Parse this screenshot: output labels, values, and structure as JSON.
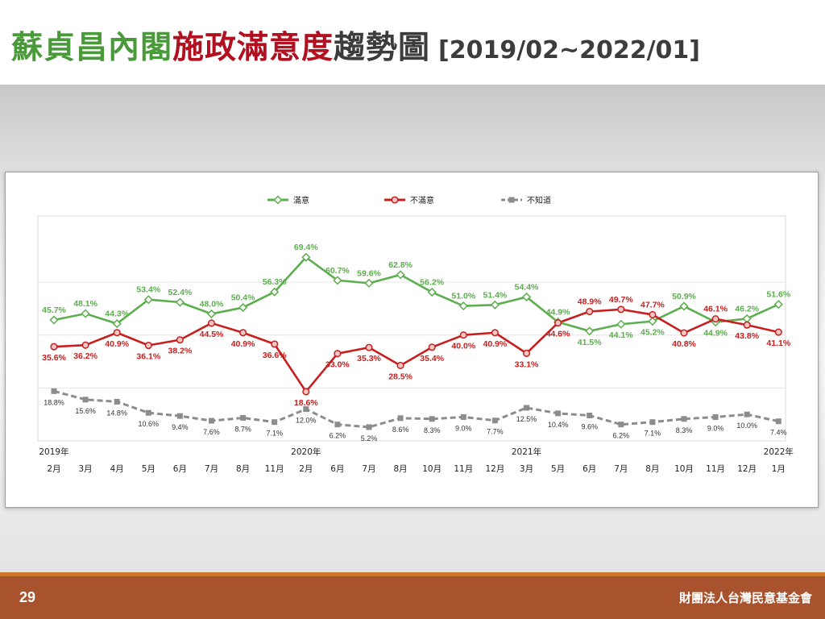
{
  "slide": {
    "title_parts": {
      "green": "蘇貞昌內閣",
      "red": "施政滿意度",
      "gray": "趨勢圖",
      "range": "[2019/02~2022/01]"
    },
    "page_number": "29",
    "organization": "財團法人台灣民意基金會",
    "colors": {
      "title_green": "#4a9a3c",
      "title_red": "#b01020",
      "footer": "#a8532d",
      "footer_line": "#c9782c"
    }
  },
  "chart_data": {
    "type": "line",
    "title": "",
    "xlabel": "",
    "ylabel": "",
    "ylim": [
      0,
      85
    ],
    "grid": true,
    "legend_position": "top",
    "categories": [
      "2月",
      "3月",
      "4月",
      "5月",
      "6月",
      "7月",
      "8月",
      "11月",
      "2月",
      "6月",
      "7月",
      "8月",
      "10月",
      "11月",
      "12月",
      "3月",
      "5月",
      "6月",
      "7月",
      "8月",
      "10月",
      "11月",
      "12月",
      "1月"
    ],
    "year_labels": [
      {
        "index": 0,
        "label": "2019年"
      },
      {
        "index": 8,
        "label": "2020年"
      },
      {
        "index": 15,
        "label": "2021年"
      },
      {
        "index": 23,
        "label": "2022年"
      }
    ],
    "series": [
      {
        "name": "滿意",
        "color": "#5cae4e",
        "marker": "diamond",
        "dashed": false,
        "values": [
          45.7,
          48.1,
          44.3,
          53.4,
          52.4,
          48.0,
          50.4,
          56.3,
          69.4,
          60.7,
          59.6,
          62.8,
          56.2,
          51.0,
          51.4,
          54.4,
          44.9,
          41.5,
          44.1,
          45.2,
          50.9,
          44.9,
          46.2,
          51.6
        ]
      },
      {
        "name": "不滿意",
        "color": "#c81e1e",
        "marker": "circle",
        "dashed": false,
        "values": [
          35.6,
          36.2,
          40.9,
          36.1,
          38.2,
          44.5,
          40.9,
          36.6,
          18.6,
          33.0,
          35.3,
          28.5,
          35.4,
          40.0,
          40.9,
          33.1,
          44.6,
          48.9,
          49.7,
          47.7,
          40.8,
          46.1,
          43.8,
          41.1
        ]
      },
      {
        "name": "不知道",
        "color": "#8c8c8c",
        "marker": "square",
        "dashed": true,
        "values": [
          18.8,
          15.6,
          14.8,
          10.6,
          9.4,
          7.6,
          8.7,
          7.1,
          12.0,
          6.2,
          5.2,
          8.6,
          8.3,
          9.0,
          7.7,
          12.5,
          10.4,
          9.6,
          6.2,
          7.1,
          8.3,
          9.0,
          10.0,
          7.4
        ]
      }
    ]
  }
}
